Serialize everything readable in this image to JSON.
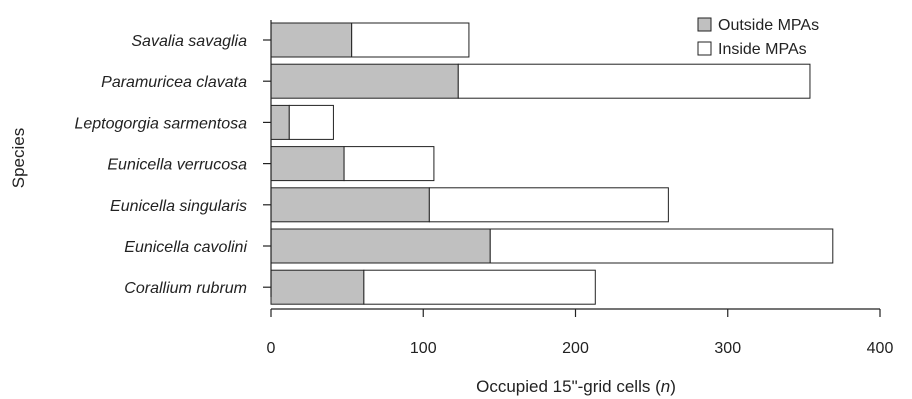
{
  "chart_data": {
    "type": "bar",
    "orientation": "horizontal",
    "stacked": true,
    "categories": [
      "Savalia savaglia",
      "Paramuricea clavata",
      "Leptogorgia sarmentosa",
      "Eunicella verrucosa",
      "Eunicella singularis",
      "Eunicella cavolini",
      "Corallium rubrum"
    ],
    "series": [
      {
        "name": "Outside MPAs",
        "color": "#c0c0c0",
        "values": [
          53,
          123,
          12,
          48,
          104,
          144,
          61
        ]
      },
      {
        "name": "Inside MPAs",
        "color": "#ffffff",
        "values": [
          77,
          231,
          29,
          59,
          157,
          225,
          152
        ]
      }
    ],
    "xlabel_prefix": "Occupied 15\"-grid cells (",
    "xlabel_var": "n",
    "xlabel_suffix": ")",
    "ylabel": "Species",
    "xlim": [
      0,
      400
    ],
    "xticks": [
      0,
      100,
      200,
      300,
      400
    ],
    "legend_position": "top-right",
    "grid": false
  }
}
